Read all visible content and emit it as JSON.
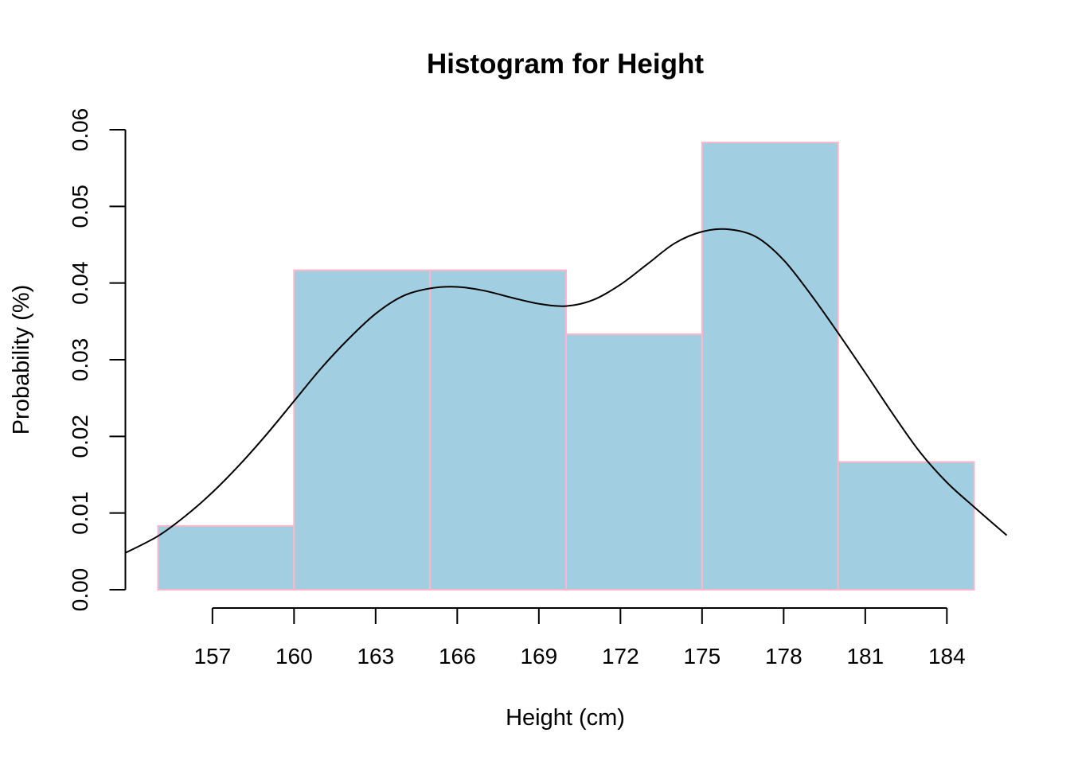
{
  "chart_data": {
    "type": "bar",
    "title": "Histogram for Height",
    "xlabel": "Height (cm)",
    "ylabel": "Probability (%)",
    "bin_edges": [
      155,
      160,
      165,
      170,
      175,
      180,
      185
    ],
    "values": [
      0.00833,
      0.04167,
      0.04167,
      0.03333,
      0.05833,
      0.01667
    ],
    "xticks": [
      157,
      160,
      163,
      166,
      169,
      172,
      175,
      178,
      181,
      184
    ],
    "yticks": [
      "0.00",
      "0.01",
      "0.02",
      "0.03",
      "0.04",
      "0.05",
      "0.06"
    ],
    "xlim": [
      153.8,
      186.2
    ],
    "ylim": [
      0,
      0.06
    ],
    "grid": false,
    "colors": {
      "bar_fill": "#a1cfe1",
      "bar_edge": "#ffb6c8",
      "line": "#000000"
    },
    "density_curve": {
      "x": [
        153.8,
        155,
        156,
        157,
        158,
        159,
        160,
        161,
        162,
        163,
        164,
        165,
        166,
        167,
        168,
        169,
        170,
        171,
        172,
        173,
        174,
        175,
        176,
        177,
        178,
        179,
        180,
        181,
        182,
        183,
        184,
        185,
        186.2
      ],
      "y": [
        0.0048,
        0.007,
        0.0096,
        0.0127,
        0.0163,
        0.0203,
        0.0246,
        0.0289,
        0.0327,
        0.036,
        0.0383,
        0.0393,
        0.0395,
        0.039,
        0.0381,
        0.0373,
        0.037,
        0.0378,
        0.0398,
        0.0425,
        0.0452,
        0.0467,
        0.047,
        0.046,
        0.043,
        0.0385,
        0.0335,
        0.0283,
        0.023,
        0.018,
        0.014,
        0.0108,
        0.0071
      ]
    }
  }
}
